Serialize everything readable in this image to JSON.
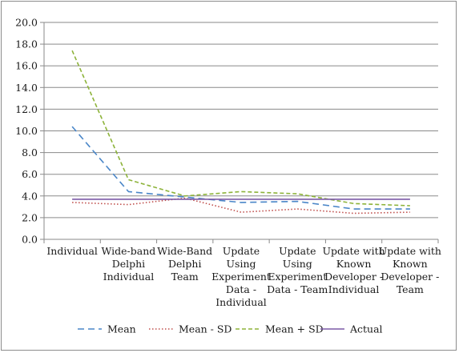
{
  "chart_data": {
    "type": "line",
    "title": "",
    "xlabel": "",
    "ylabel": "",
    "ylim": [
      0,
      20
    ],
    "yticks": [
      "0.0",
      "2.0",
      "4.0",
      "6.0",
      "8.0",
      "10.0",
      "12.0",
      "14.0",
      "16.0",
      "18.0",
      "20.0"
    ],
    "grid": true,
    "legend_position": "bottom",
    "categories": [
      "Individual",
      "Wide-band Delphi Individual",
      "Wide-Band Delphi Team",
      "Update Using Experiment Data - Individual",
      "Update Using Experiment Data - Team",
      "Update with Known Developer - Individual",
      "Update with Known Developer - Team"
    ],
    "category_lines": [
      [
        "Individual"
      ],
      [
        "Wide-band",
        "Delphi",
        "Individual"
      ],
      [
        "Wide-Band",
        "Delphi",
        "Team"
      ],
      [
        "Update",
        "Using",
        "Experiment",
        "Data -",
        "Individual"
      ],
      [
        "Update",
        "Using",
        "Experiment",
        "Data - Team"
      ],
      [
        "Update with",
        "Known",
        "Developer -",
        "Individual"
      ],
      [
        "Update with",
        "Known",
        "Developer -",
        "Team"
      ]
    ],
    "series": [
      {
        "name": "Mean",
        "values": [
          10.4,
          4.4,
          3.9,
          3.4,
          3.5,
          2.8,
          2.8
        ],
        "color": "#4a86c8",
        "dash": "8,5"
      },
      {
        "name": "Mean - SD",
        "values": [
          3.4,
          3.2,
          3.8,
          2.5,
          2.8,
          2.4,
          2.5
        ],
        "color": "#c0504d",
        "dash": "1.5,2.5"
      },
      {
        "name": "Mean + SD",
        "values": [
          17.4,
          5.5,
          4.0,
          4.4,
          4.2,
          3.3,
          3.1
        ],
        "color": "#8db33a",
        "dash": "5,3"
      },
      {
        "name": "Actual",
        "values": [
          3.7,
          3.7,
          3.7,
          3.7,
          3.7,
          3.7,
          3.7
        ],
        "color": "#7b5aa6",
        "dash": ""
      }
    ]
  }
}
